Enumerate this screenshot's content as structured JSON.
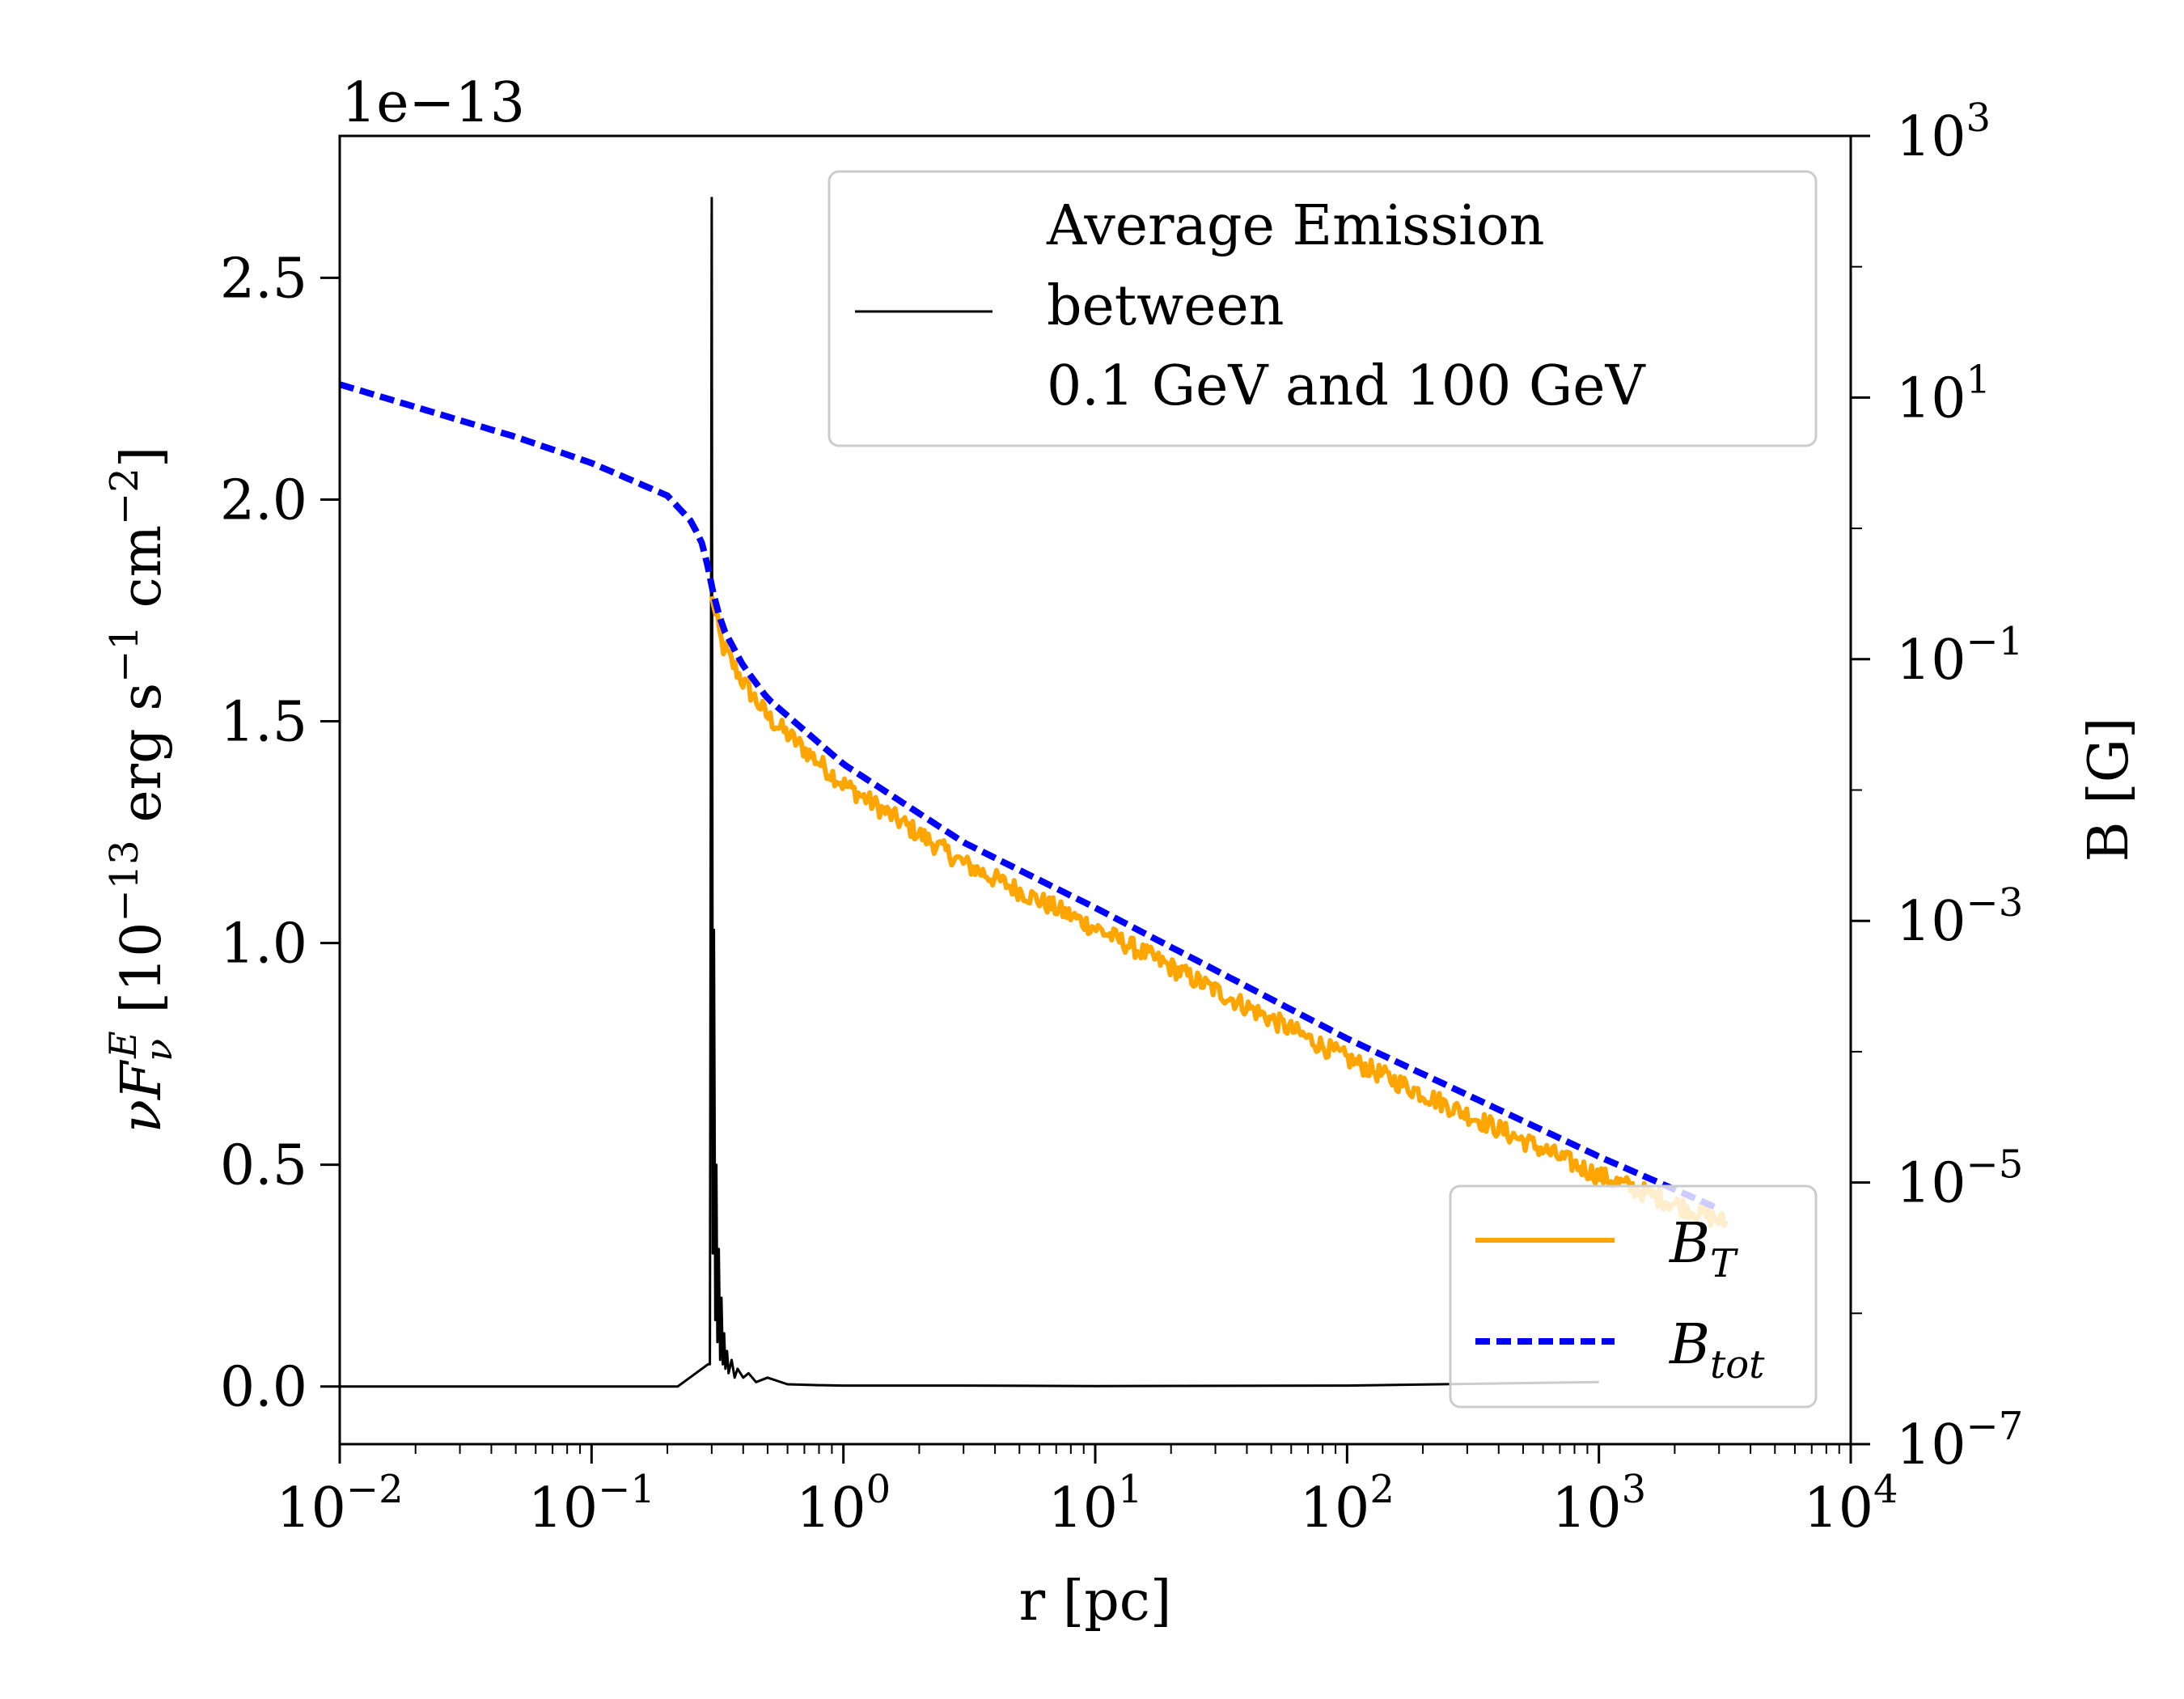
{
  "chart_data": {
    "type": "line",
    "xlabel": "r [pc]",
    "x_scale": "log",
    "xlim": [
      0.01,
      10000
    ],
    "x_ticks": [
      {
        "value": 0.01,
        "base": "10",
        "exp": "−2"
      },
      {
        "value": 0.1,
        "base": "10",
        "exp": "−1"
      },
      {
        "value": 1,
        "base": "10",
        "exp": "0"
      },
      {
        "value": 10,
        "base": "10",
        "exp": "1"
      },
      {
        "value": 100,
        "base": "10",
        "exp": "2"
      },
      {
        "value": 1000,
        "base": "10",
        "exp": "3"
      },
      {
        "value": 10000,
        "base": "10",
        "exp": "4"
      }
    ],
    "left_axis": {
      "label": "νF_ν^E [10^−13 erg s^−1 cm^−2]",
      "label_parts": {
        "nu": "ν",
        "F": "F",
        "sub": "ν",
        "sup": "E",
        "open": " [10",
        "exp1": "−13",
        "erg": " erg s",
        "exp2": "−1",
        "cm": " cm",
        "exp3": "−2",
        "close": "]"
      },
      "scale": "linear",
      "ylim": [
        -0.13,
        2.82
      ],
      "offset_text": "1e−13",
      "ticks": [
        {
          "value": 0.0,
          "label": "0.0"
        },
        {
          "value": 0.5,
          "label": "0.5"
        },
        {
          "value": 1.0,
          "label": "1.0"
        },
        {
          "value": 1.5,
          "label": "1.5"
        },
        {
          "value": 2.0,
          "label": "2.0"
        },
        {
          "value": 2.5,
          "label": "2.5"
        }
      ]
    },
    "right_axis": {
      "label": "B [G]",
      "scale": "log",
      "ylim": [
        1e-07,
        1000
      ],
      "ticks": [
        {
          "value": 1e-07,
          "base": "10",
          "exp": "−7"
        },
        {
          "value": 1e-05,
          "base": "10",
          "exp": "−5"
        },
        {
          "value": 0.001,
          "base": "10",
          "exp": "−3"
        },
        {
          "value": 0.1,
          "base": "10",
          "exp": "−1"
        },
        {
          "value": 10,
          "base": "10",
          "exp": "1"
        },
        {
          "value": 1000,
          "base": "10",
          "exp": "3"
        }
      ]
    },
    "series": [
      {
        "name": "Average Emission between 0.1 GeV and 100 GeV",
        "axis": "left",
        "color": "#000000",
        "style": "solid",
        "x": [
          0.01,
          0.22,
          0.29,
          0.295,
          0.3,
          0.303,
          0.306,
          0.31,
          0.313,
          0.316,
          0.32,
          0.324,
          0.328,
          0.332,
          0.336,
          0.34,
          0.345,
          0.35,
          0.36,
          0.37,
          0.38,
          0.4,
          0.42,
          0.45,
          0.5,
          0.6,
          0.8,
          1,
          3,
          10,
          100,
          1000
        ],
        "y": [
          0.0,
          0.0,
          0.05,
          0.05,
          2.68,
          0.3,
          1.03,
          0.15,
          0.5,
          0.1,
          0.31,
          0.06,
          0.2,
          0.05,
          0.12,
          0.04,
          0.08,
          0.03,
          0.06,
          0.02,
          0.04,
          0.02,
          0.03,
          0.01,
          0.02,
          0.005,
          0.003,
          0.002,
          0.002,
          0.001,
          0.002,
          0.01
        ]
      },
      {
        "name": "B_tot",
        "label_base": "B",
        "label_sub": "tot",
        "axis": "right",
        "color": "#0000ff",
        "style": "dashed",
        "x": [
          0.01,
          0.05,
          0.1,
          0.2,
          0.25,
          0.28,
          0.3,
          0.33,
          0.4,
          0.5,
          1,
          3,
          10,
          100,
          1000,
          3000
        ],
        "y": [
          12.6,
          5.0,
          3.16,
          1.78,
          1.12,
          0.71,
          0.355,
          0.178,
          0.089,
          0.05,
          0.0158,
          0.00398,
          0.00126,
          0.000126,
          1.58e-05,
          6.3e-06
        ]
      },
      {
        "name": "B_T",
        "label_base": "B",
        "label_sub": "T",
        "axis": "right",
        "color": "#ffa500",
        "style": "solid",
        "noise_dex": 0.15,
        "x": [
          0.3,
          0.33,
          0.4,
          0.5,
          1,
          3,
          10,
          100,
          1000,
          3200
        ],
        "y": [
          0.3,
          0.13,
          0.068,
          0.037,
          0.0113,
          0.0028,
          0.0009,
          9e-05,
          1.15e-05,
          5e-06
        ]
      }
    ],
    "legends": [
      {
        "location": "upper right",
        "entries": [
          {
            "series": 0,
            "lines": [
              "Average Emission",
              "between",
              "0.1 GeV and 100 GeV"
            ]
          }
        ]
      },
      {
        "location": "lower right",
        "entries": [
          {
            "series": 2
          },
          {
            "series": 1
          }
        ]
      }
    ]
  }
}
